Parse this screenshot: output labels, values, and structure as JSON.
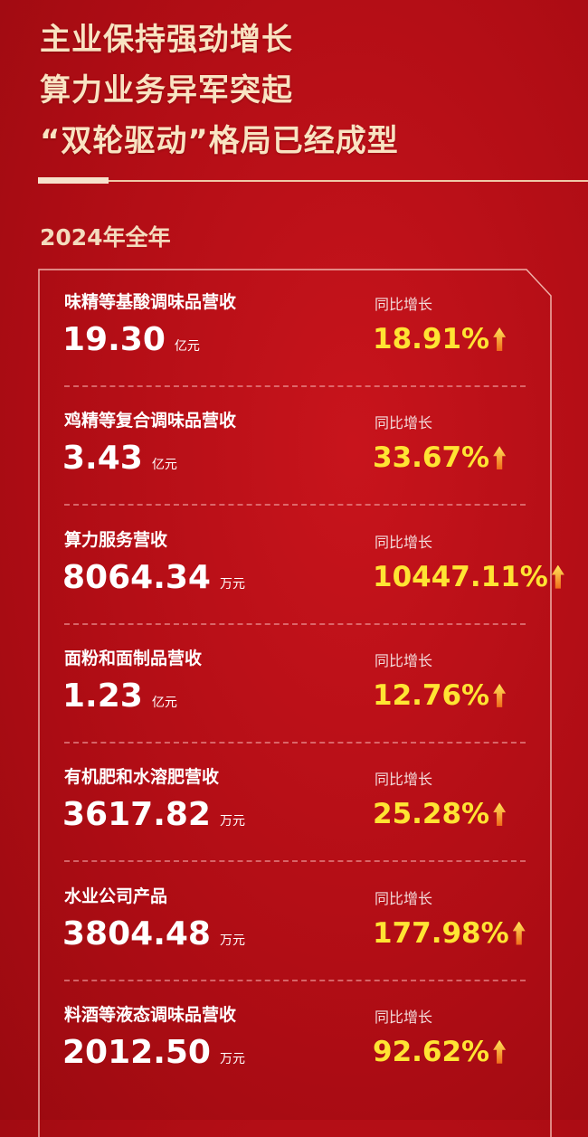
{
  "headline": [
    "主业保持强劲增长",
    "算力业务异军突起",
    "“双轮驱动”格局已经成型"
  ],
  "period": "2024年全年",
  "yoy_label": "同比增长",
  "items": [
    {
      "label": "味精等基酸调味品营收",
      "value": "19.30",
      "unit": "亿元",
      "growth": "18.91%"
    },
    {
      "label": "鸡精等复合调味品营收",
      "value": "3.43",
      "unit": "亿元",
      "growth": "33.67%"
    },
    {
      "label": "算力服务营收",
      "value": "8064.34",
      "unit": "万元",
      "growth": "10447.11%"
    },
    {
      "label": "面粉和面制品营收",
      "value": "1.23",
      "unit": "亿元",
      "growth": "12.76%"
    },
    {
      "label": "有机肥和水溶肥营收",
      "value": "3617.82",
      "unit": "万元",
      "growth": "25.28%"
    },
    {
      "label": "水业公司产品",
      "value": "3804.48",
      "unit": "万元",
      "growth": "177.98%"
    },
    {
      "label": "料酒等液态调味品营收",
      "value": "2012.50",
      "unit": "万元",
      "growth": "92.62%"
    }
  ],
  "colors": {
    "background": "#b10d15",
    "headline": "#f9e3c2",
    "growth": "#ffe433"
  },
  "icons": {
    "growth": "arrow-up-icon"
  }
}
